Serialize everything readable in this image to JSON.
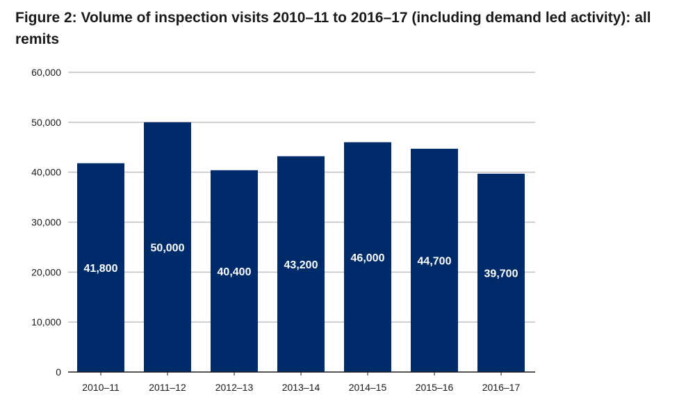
{
  "chart_data": {
    "type": "bar",
    "title": "Figure 2: Volume of inspection visits 2010–11 to 2016–17 (including demand led activity): all remits",
    "xlabel": "",
    "ylabel": "",
    "categories": [
      "2010–11",
      "2011–12",
      "2012–13",
      "2013–14",
      "2014–15",
      "2015–16",
      "2016–17"
    ],
    "values": [
      41800,
      50000,
      40400,
      43200,
      46000,
      44700,
      39700
    ],
    "data_labels": [
      "41,800",
      "50,000",
      "40,400",
      "43,200",
      "46,000",
      "44,700",
      "39,700"
    ],
    "ylim": [
      0,
      60000
    ],
    "yticks": [
      0,
      10000,
      20000,
      30000,
      40000,
      50000,
      60000
    ],
    "ytick_labels": [
      "0",
      "10,000",
      "20,000",
      "30,000",
      "40,000",
      "50,000",
      "60,000"
    ],
    "grid": true,
    "legend": "none",
    "colors": {
      "bar": "#002b6b",
      "grid": "#c0c0c0",
      "axis": "#1a1a1a",
      "label": "#ffffff"
    }
  }
}
